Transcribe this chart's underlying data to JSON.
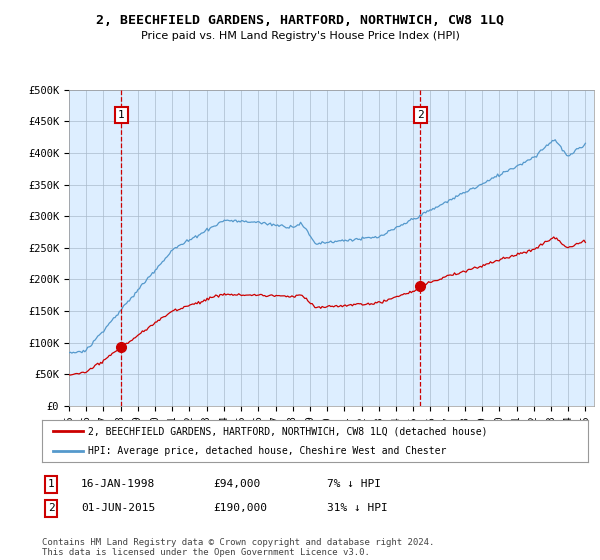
{
  "title": "2, BEECHFIELD GARDENS, HARTFORD, NORTHWICH, CW8 1LQ",
  "subtitle": "Price paid vs. HM Land Registry's House Price Index (HPI)",
  "ylabel_ticks": [
    "£0",
    "£50K",
    "£100K",
    "£150K",
    "£200K",
    "£250K",
    "£300K",
    "£350K",
    "£400K",
    "£450K",
    "£500K"
  ],
  "ytick_values": [
    0,
    50000,
    100000,
    150000,
    200000,
    250000,
    300000,
    350000,
    400000,
    450000,
    500000
  ],
  "ylim": [
    0,
    500000
  ],
  "sale1_price": 94000,
  "sale2_price": 190000,
  "sale1_x": 1998.04,
  "sale2_x": 2015.42,
  "legend_line1": "2, BEECHFIELD GARDENS, HARTFORD, NORTHWICH, CW8 1LQ (detached house)",
  "legend_line2": "HPI: Average price, detached house, Cheshire West and Chester",
  "table_row1": [
    "1",
    "16-JAN-1998",
    "£94,000",
    "7% ↓ HPI"
  ],
  "table_row2": [
    "2",
    "01-JUN-2015",
    "£190,000",
    "31% ↓ HPI"
  ],
  "footer": "Contains HM Land Registry data © Crown copyright and database right 2024.\nThis data is licensed under the Open Government Licence v3.0.",
  "hpi_color": "#5599cc",
  "price_color": "#cc0000",
  "vline_color": "#cc0000",
  "plot_bg_color": "#ddeeff",
  "background_color": "#ffffff",
  "grid_color": "#aabbcc"
}
